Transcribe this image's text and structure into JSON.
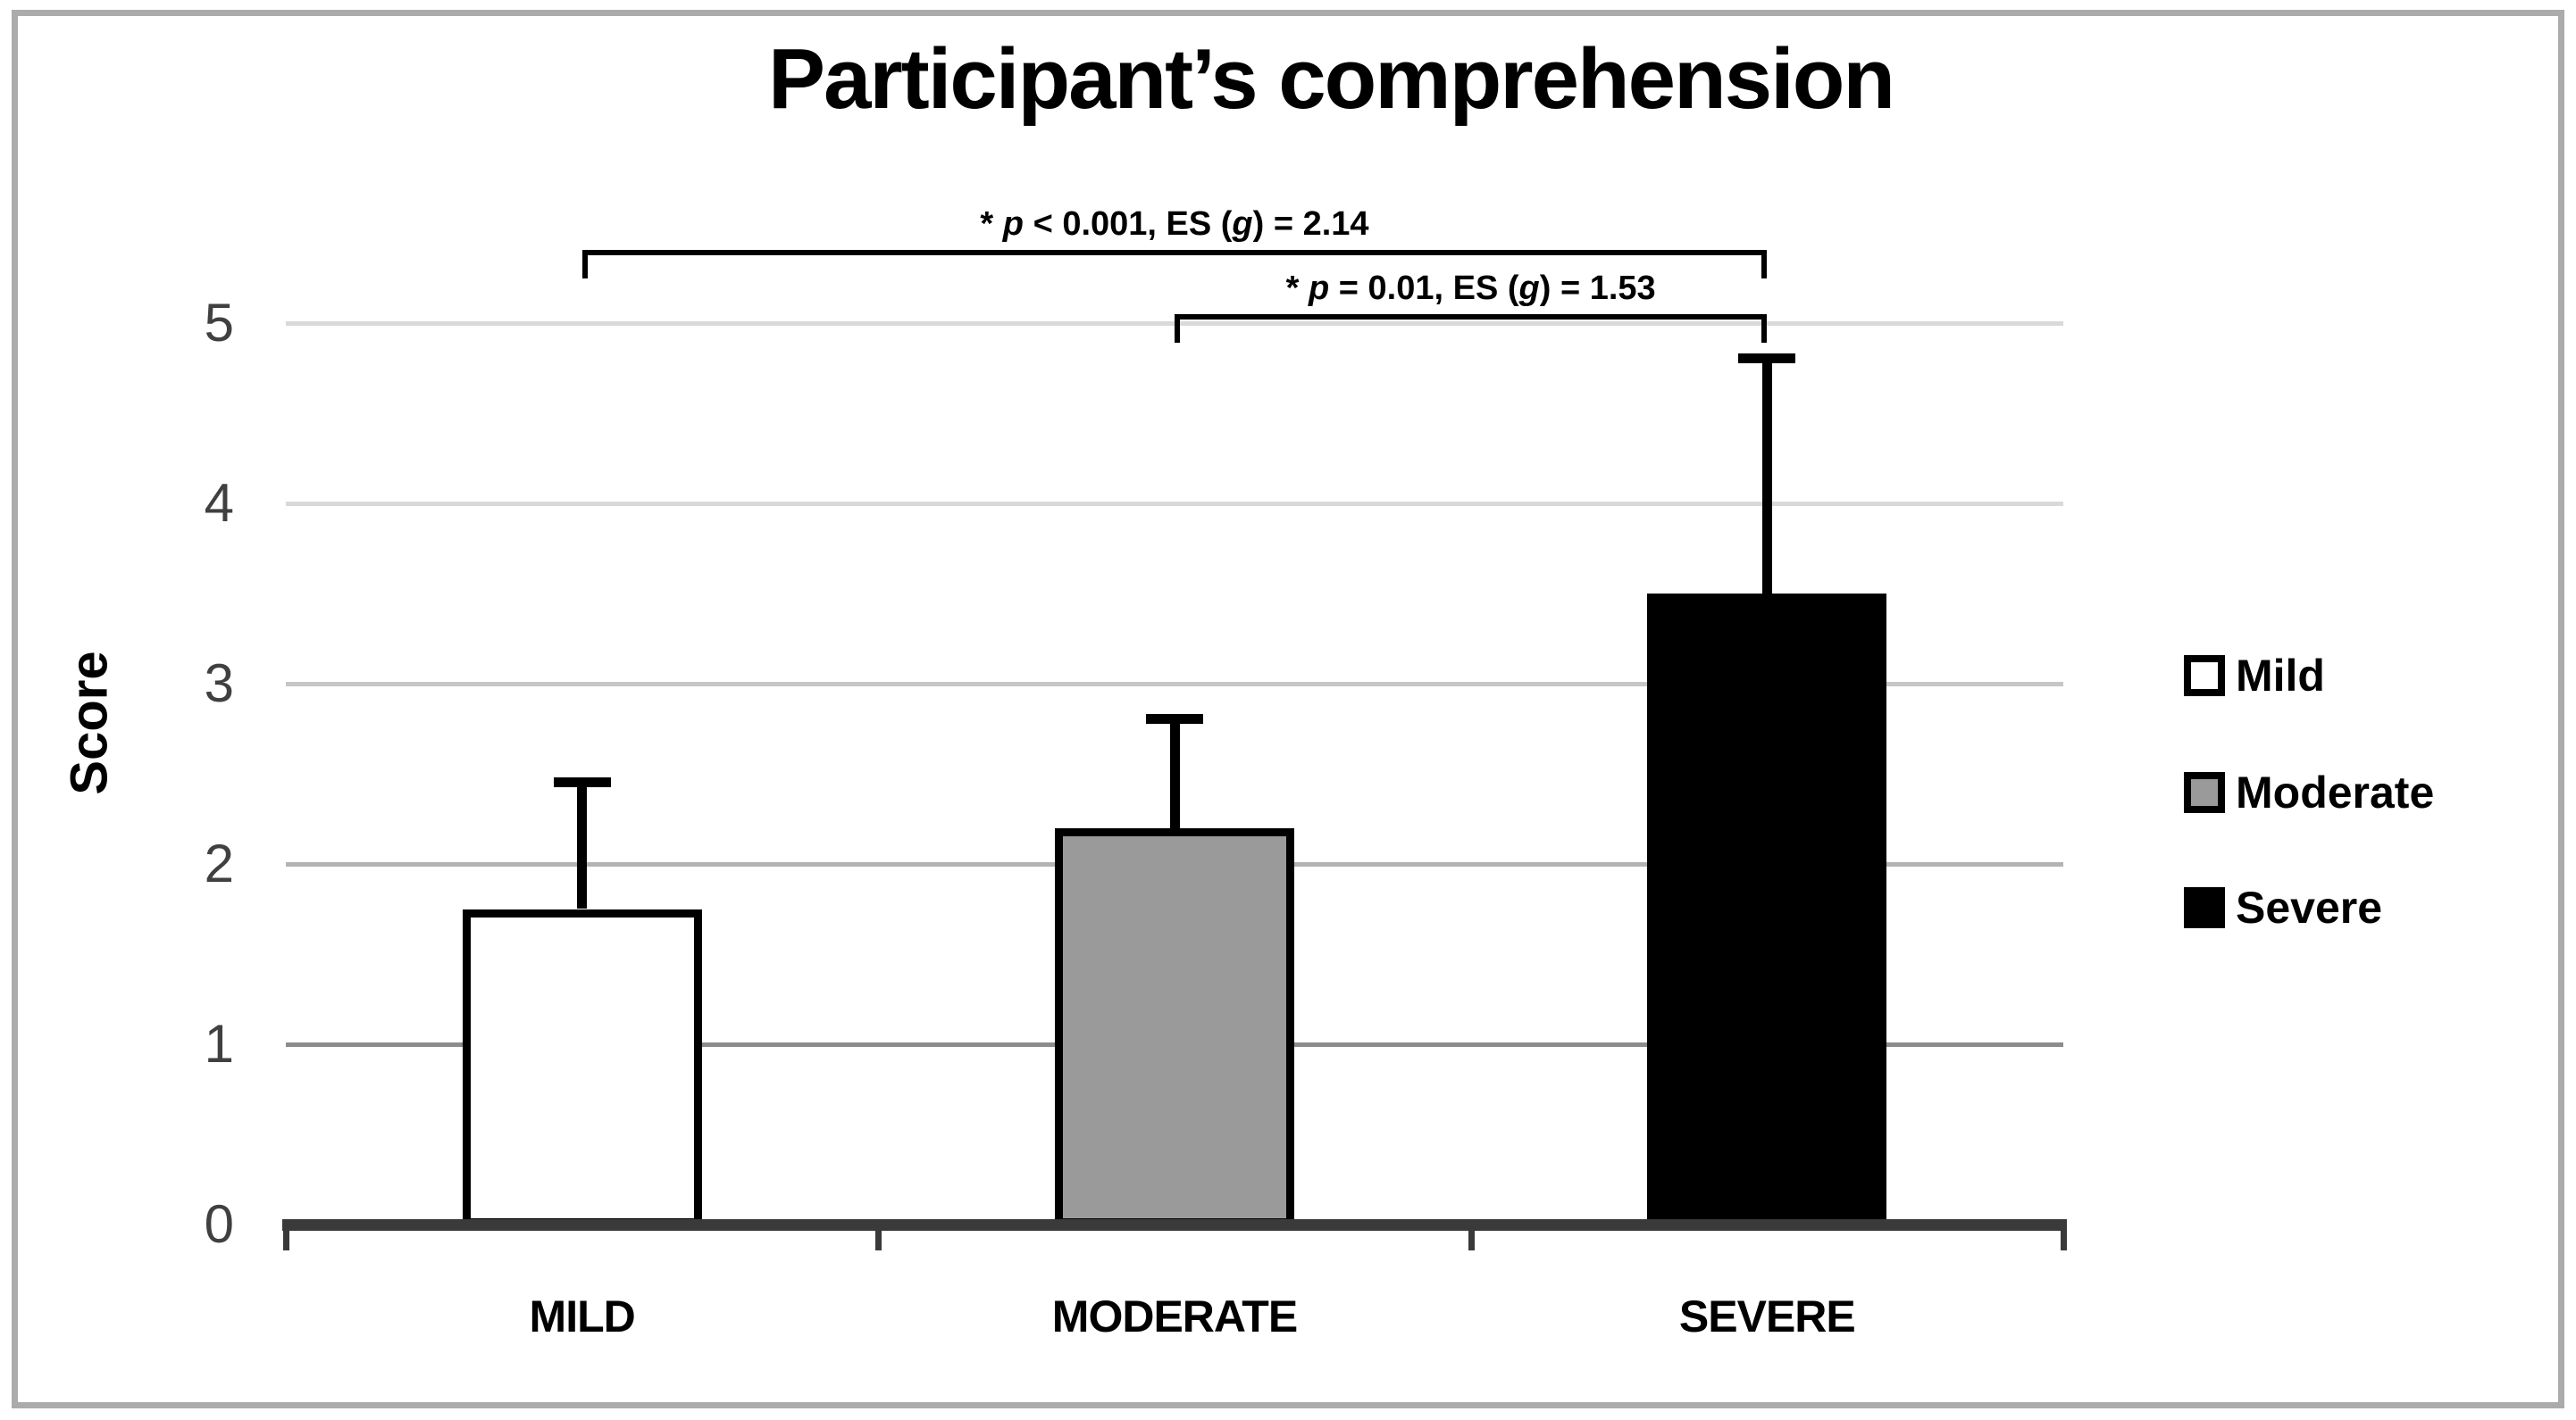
{
  "chart_data": {
    "type": "bar",
    "title": "Participant’s comprehension",
    "ylabel": "Score",
    "xlabel": "",
    "categories": [
      "MILD",
      "MODERATE",
      "SEVERE"
    ],
    "values": [
      1.75,
      2.2,
      3.5
    ],
    "error_top": [
      2.45,
      2.8,
      4.8
    ],
    "ylim": [
      0,
      5
    ],
    "yticks": [
      0,
      1,
      2,
      3,
      4,
      5
    ],
    "grid": "horizontal",
    "legend_position": "right",
    "legend": [
      {
        "label": "Mild",
        "fill": "#FFFFFF"
      },
      {
        "label": "Moderate",
        "fill": "#9A9A9A"
      },
      {
        "label": "Severe",
        "fill": "#000000"
      }
    ],
    "annotations": [
      {
        "level": 1,
        "between": [
          "MILD",
          "SEVERE"
        ],
        "text": "* p < 0.001, ES (g) = 2.14",
        "segments": [
          {
            "text": "* ",
            "italic": false
          },
          {
            "text": "p",
            "italic": true
          },
          {
            "text": " < 0.001, ES (",
            "italic": false
          },
          {
            "text": "g",
            "italic": true
          },
          {
            "text": ") = 2.14",
            "italic": false
          }
        ]
      },
      {
        "level": 2,
        "between": [
          "MODERATE",
          "SEVERE"
        ],
        "text": "* p = 0.01, ES (g) = 1.53",
        "segments": [
          {
            "text": "* ",
            "italic": false
          },
          {
            "text": "p",
            "italic": true
          },
          {
            "text": " = 0.01, ES (",
            "italic": false
          },
          {
            "text": "g",
            "italic": true
          },
          {
            "text": ") = 1.53",
            "italic": false
          }
        ]
      }
    ],
    "style": {
      "bar_border_color": "#000000",
      "axis_color": "#3A3A3A",
      "tick_label_color": "#404040",
      "frame_color": "#ABABAB",
      "gridline_colors_by_value": [
        "#8C8C8C",
        "#B3B3B3",
        "#C6C6C6",
        "#D9D9D9",
        "#D9D9D9"
      ]
    }
  }
}
